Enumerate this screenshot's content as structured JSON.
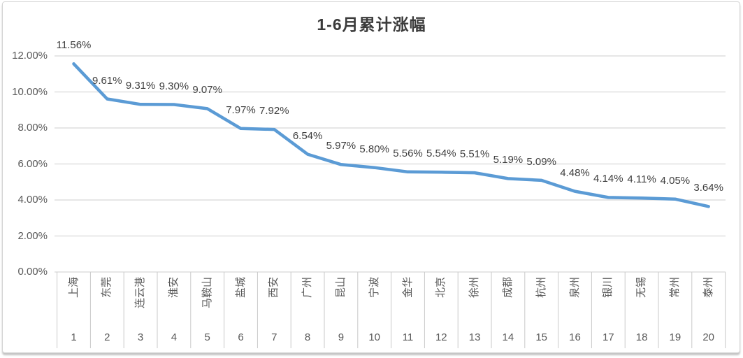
{
  "chart_data": {
    "type": "line",
    "title": "1-6月累计涨幅",
    "grid": true,
    "legend_position": "none",
    "ylim": [
      0,
      12
    ],
    "y_ticks": [
      "12.00%",
      "10.00%",
      "8.00%",
      "6.00%",
      "4.00%",
      "2.00%",
      "0.00%"
    ],
    "categories": [
      "上海",
      "东莞",
      "连云港",
      "淮安",
      "马鞍山",
      "盐城",
      "西安",
      "广州",
      "昆山",
      "宁波",
      "金华",
      "北京",
      "徐州",
      "成都",
      "杭州",
      "泉州",
      "银川",
      "无锡",
      "常州",
      "泰州"
    ],
    "rank_labels": [
      "1",
      "2",
      "3",
      "4",
      "5",
      "6",
      "7",
      "8",
      "9",
      "10",
      "11",
      "12",
      "13",
      "14",
      "15",
      "16",
      "17",
      "18",
      "19",
      "20"
    ],
    "values": [
      11.56,
      9.61,
      9.31,
      9.3,
      9.07,
      7.97,
      7.92,
      6.54,
      5.97,
      5.8,
      5.56,
      5.54,
      5.51,
      5.19,
      5.09,
      4.48,
      4.14,
      4.11,
      4.05,
      3.64
    ],
    "data_labels": [
      "11.56%",
      "9.61%",
      "9.31%",
      "9.30%",
      "9.07%",
      "7.97%",
      "7.92%",
      "6.54%",
      "5.97%",
      "5.80%",
      "5.56%",
      "5.54%",
      "5.51%",
      "5.19%",
      "5.09%",
      "4.48%",
      "4.14%",
      "4.11%",
      "4.05%",
      "3.64%"
    ],
    "line_color": "#5B9BD5"
  },
  "colors": {
    "title_text": "#3b3b3b",
    "axis_text": "#595959",
    "data_label_text": "#3f3f3f",
    "gridline": "#d8d8d8",
    "divider": "#c9c9c9",
    "card_border": "#d5d5d5"
  }
}
